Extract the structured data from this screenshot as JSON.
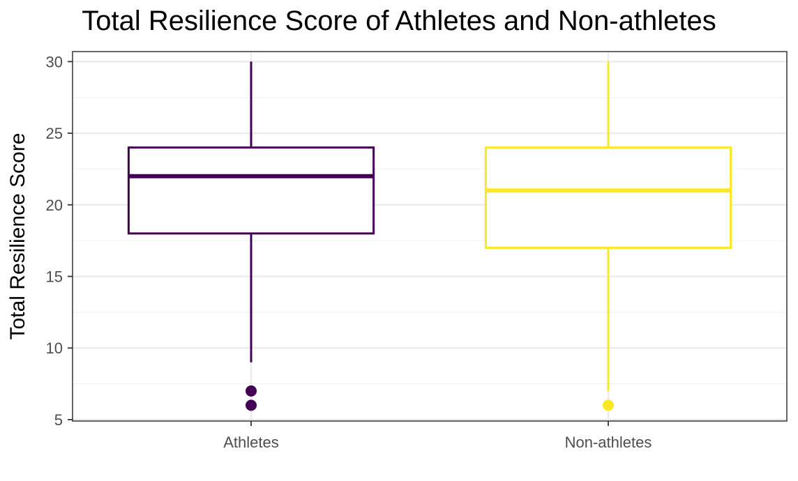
{
  "chart_data": {
    "type": "boxplot",
    "title": "Total Resilience Score of Athletes and Non-athletes",
    "xlabel": "",
    "ylabel": "Total Resilience Score",
    "ylim": [
      4.9,
      30.7
    ],
    "yticks": [
      5,
      10,
      15,
      20,
      25,
      30
    ],
    "grid": true,
    "legend": "none",
    "categories": [
      "Athletes",
      "Non-athletes"
    ],
    "series": [
      {
        "category": "Athletes",
        "color": "#440154",
        "whisker_low": 9,
        "q1": 18,
        "median": 22,
        "q3": 24,
        "whisker_high": 30,
        "outliers": [
          7,
          6
        ]
      },
      {
        "category": "Non-athletes",
        "color": "#fde725",
        "whisker_low": 7,
        "q1": 17,
        "median": 21,
        "q3": 24,
        "whisker_high": 30,
        "outliers": [
          6
        ]
      }
    ]
  }
}
